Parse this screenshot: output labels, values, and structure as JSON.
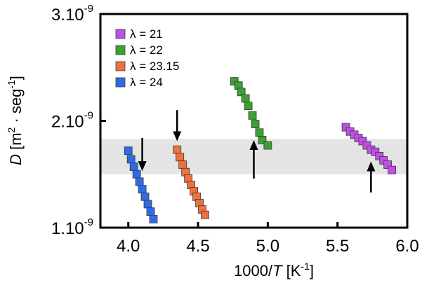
{
  "chart_data": {
    "type": "scatter",
    "xlabel_prefix": "1000/",
    "xlabel_var": "T",
    "xlabel_unit": " [K",
    "xlabel_unit_exp": "-1",
    "xlabel_unit_close": "]",
    "ylabel_var": "D",
    "ylabel_unit": " [m",
    "ylabel_unit_exp": "2",
    "ylabel_unit_mid": " · seg",
    "ylabel_unit_exp2": "-1",
    "ylabel_unit_close": "]",
    "xlim": [
      3.8,
      6.0
    ],
    "ylim": [
      1.1e-09,
      3.1e-09
    ],
    "x_ticks": [
      {
        "value": 4.0,
        "label": "4.0"
      },
      {
        "value": 4.5,
        "label": "4.5"
      },
      {
        "value": 5.0,
        "label": "5.0"
      },
      {
        "value": 5.5,
        "label": "5.5"
      },
      {
        "value": 6.0,
        "label": "6.0"
      }
    ],
    "y_ticks": [
      {
        "value": 1.1e-09,
        "base": "1.10",
        "exp": "-9"
      },
      {
        "value": 2.1e-09,
        "base": "2.10",
        "exp": "-9"
      },
      {
        "value": 3.1e-09,
        "base": "3.10",
        "exp": "-9"
      }
    ],
    "shaded_band": {
      "y0": 1.6e-09,
      "y1": 1.93e-09,
      "color": "#e4e4e4"
    },
    "legend_position": "top-left",
    "series": [
      {
        "name": "λ = 21",
        "color": "#c04fe6",
        "x": [
          5.56,
          5.59,
          5.62,
          5.65,
          5.68,
          5.71,
          5.74,
          5.77,
          5.8,
          5.83,
          5.86,
          5.89
        ],
        "y": [
          2.04e-09,
          2e-09,
          1.97e-09,
          1.94e-09,
          1.91e-09,
          1.87e-09,
          1.83e-09,
          1.81e-09,
          1.77e-09,
          1.73e-09,
          1.69e-09,
          1.64e-09
        ]
      },
      {
        "name": "λ = 22",
        "color": "#3aa231",
        "x": [
          4.76,
          4.79,
          4.81,
          4.84,
          4.86,
          4.89,
          4.91,
          4.94,
          4.96,
          5.0
        ],
        "y": [
          2.47e-09,
          2.43e-09,
          2.37e-09,
          2.31e-09,
          2.24e-09,
          2.15e-09,
          2.07e-09,
          1.99e-09,
          1.92e-09,
          1.87e-09
        ]
      },
      {
        "name": "λ = 23.15",
        "color": "#f0703f",
        "x": [
          4.35,
          4.37,
          4.39,
          4.41,
          4.43,
          4.45,
          4.47,
          4.49,
          4.51,
          4.53,
          4.55
        ],
        "y": [
          1.83e-09,
          1.76e-09,
          1.69e-09,
          1.62e-09,
          1.56e-09,
          1.5e-09,
          1.44e-09,
          1.39e-09,
          1.33e-09,
          1.27e-09,
          1.22e-09
        ]
      },
      {
        "name": "λ = 24",
        "color": "#2f6be8",
        "x": [
          4.0,
          4.02,
          4.04,
          4.06,
          4.08,
          4.1,
          4.12,
          4.14,
          4.16,
          4.18
        ],
        "y": [
          1.82e-09,
          1.74e-09,
          1.67e-09,
          1.6e-09,
          1.53e-09,
          1.46e-09,
          1.39e-09,
          1.32e-09,
          1.25e-09,
          1.18e-09
        ]
      }
    ],
    "arrows": [
      {
        "series": "λ = 24",
        "direction": "down",
        "x": 4.1,
        "y_from": 1.94e-09,
        "y_to": 1.63e-09
      },
      {
        "series": "λ = 23.15",
        "direction": "down",
        "x": 4.35,
        "y_from": 2.2e-09,
        "y_to": 1.91e-09
      },
      {
        "series": "λ = 22",
        "direction": "up",
        "x": 4.9,
        "y_from": 1.56e-09,
        "y_to": 1.92e-09
      },
      {
        "series": "λ = 21",
        "direction": "up",
        "x": 5.74,
        "y_from": 1.43e-09,
        "y_to": 1.72e-09
      }
    ]
  }
}
